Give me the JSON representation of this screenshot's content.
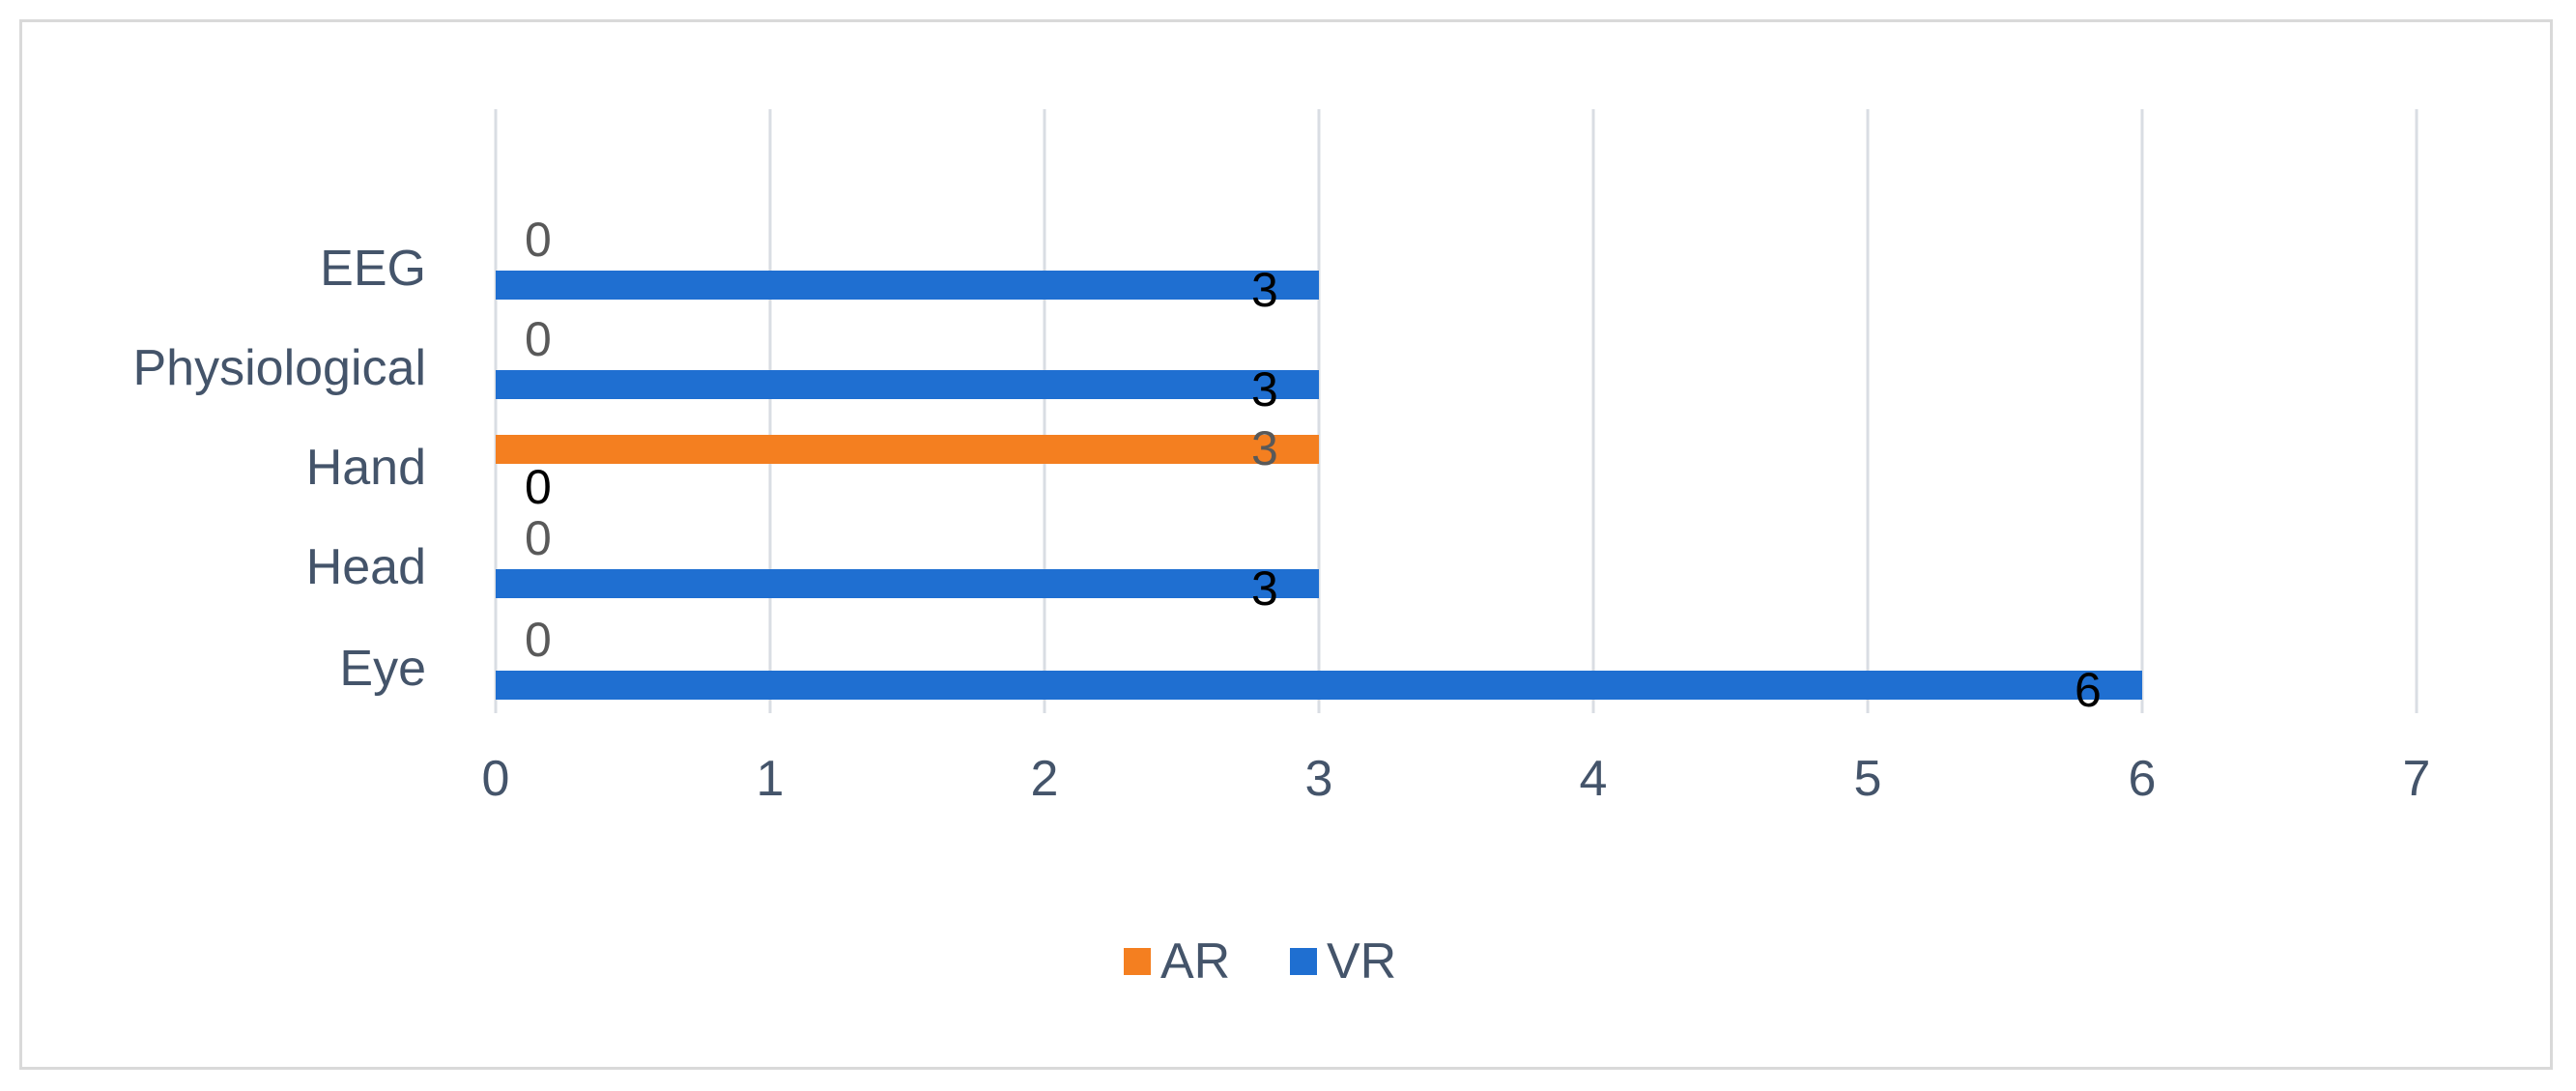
{
  "chart_data": {
    "type": "bar",
    "orientation": "horizontal",
    "categories": [
      "Eye",
      "Head",
      "Hand",
      "Physiological",
      "EEG"
    ],
    "series": [
      {
        "name": "AR",
        "values": [
          0,
          0,
          3,
          0,
          0
        ],
        "color": "#f47f20",
        "label_color": "#595959"
      },
      {
        "name": "VR",
        "values": [
          6,
          3,
          0,
          3,
          3
        ],
        "color": "#1f6fd1",
        "label_color": "#000000"
      }
    ],
    "xlim": [
      0,
      7
    ],
    "x_ticks": [
      "0",
      "1",
      "2",
      "3",
      "4",
      "5",
      "6",
      "7"
    ],
    "grid": true,
    "legend_position": "bottom",
    "gridline_color": "#d9dde3",
    "axis_text_color": "#44546a"
  }
}
